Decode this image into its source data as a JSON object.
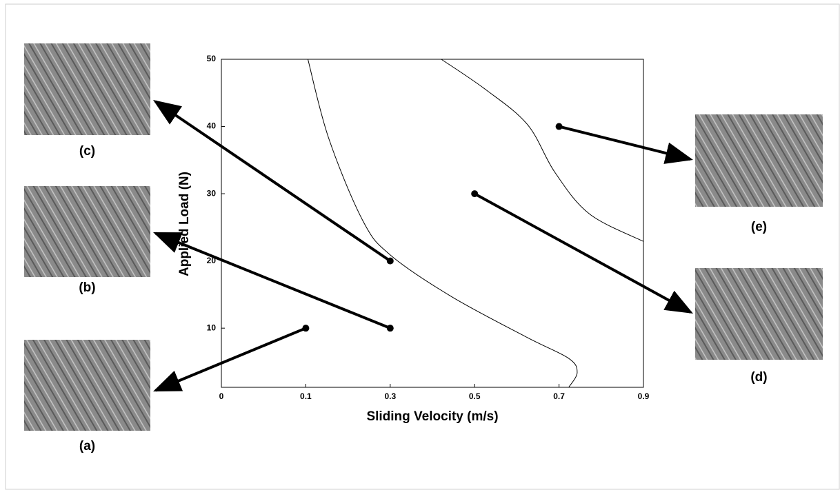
{
  "chart_data": {
    "type": "scatter",
    "xlabel": "Sliding Velocity (m/s)",
    "ylabel": "Applied Load (N)",
    "xlim": [
      0,
      0.9
    ],
    "ylim": [
      1.2,
      50
    ],
    "xticks": [
      0,
      0.1,
      0.3,
      0.5,
      0.7,
      0.9
    ],
    "yticks": [
      10,
      20,
      30,
      40,
      50
    ],
    "color": "#000000",
    "points": {
      "x": [
        0.1,
        0.3,
        0.3,
        0.5,
        0.7
      ],
      "y": [
        10,
        10,
        20,
        30,
        40
      ]
    },
    "boundaries": [
      {
        "x": [
          0.105,
          0.154,
          0.235,
          0.3,
          0.445,
          0.625,
          0.723,
          0.743,
          0.723
        ],
        "y": [
          50,
          38.3,
          26,
          20.9,
          14.7,
          8.6,
          5.5,
          3.4,
          1.2
        ]
      },
      {
        "x": [
          0.421,
          0.526,
          0.625,
          0.69,
          0.772,
          0.9
        ],
        "y": [
          50,
          45.5,
          40.3,
          33.2,
          27,
          22.9
        ]
      }
    ],
    "images": [
      {
        "label": "(a)"
      },
      {
        "label": "(b)"
      },
      {
        "label": "(c)"
      },
      {
        "label": "(d)"
      },
      {
        "label": "(e)"
      }
    ]
  }
}
